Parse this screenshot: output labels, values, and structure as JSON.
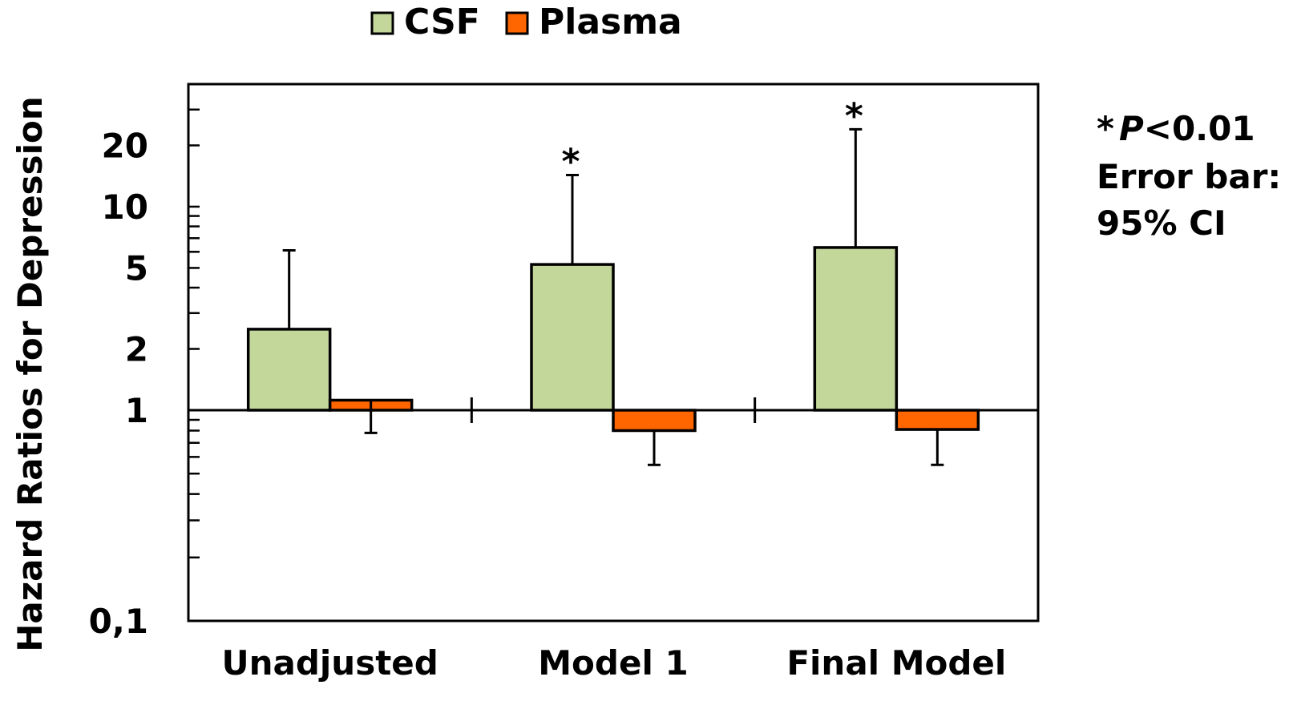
{
  "chart_data": {
    "type": "bar",
    "title": "",
    "xlabel": "",
    "ylabel": "Hazard Ratios for Depression",
    "y_scale": "log",
    "ylim": [
      0.1,
      40
    ],
    "baseline": 1,
    "y_tick_labels": [
      "20",
      "10",
      "5",
      "2",
      "1",
      "0,1"
    ],
    "y_tick_values": [
      20,
      10,
      5,
      2,
      1,
      0.1
    ],
    "categories": [
      "Unadjusted",
      "Model 1",
      "Final Model"
    ],
    "series": [
      {
        "name": "CSF",
        "color": "#c4d79b",
        "values": [
          2.5,
          5.2,
          6.3
        ],
        "ci_upper": [
          6.1,
          14.3,
          24.0
        ],
        "significant": [
          false,
          true,
          true
        ]
      },
      {
        "name": "Plasma",
        "color": "#ff6600",
        "values": [
          1.12,
          0.8,
          0.81
        ],
        "ci_lower": [
          0.78,
          0.55,
          0.55
        ]
      }
    ],
    "significance_marker": "*",
    "grid": false,
    "legend_position": "top-center",
    "annotations": [
      "*",
      "P",
      "<0.01",
      "Error bar:",
      "95% CI"
    ]
  }
}
